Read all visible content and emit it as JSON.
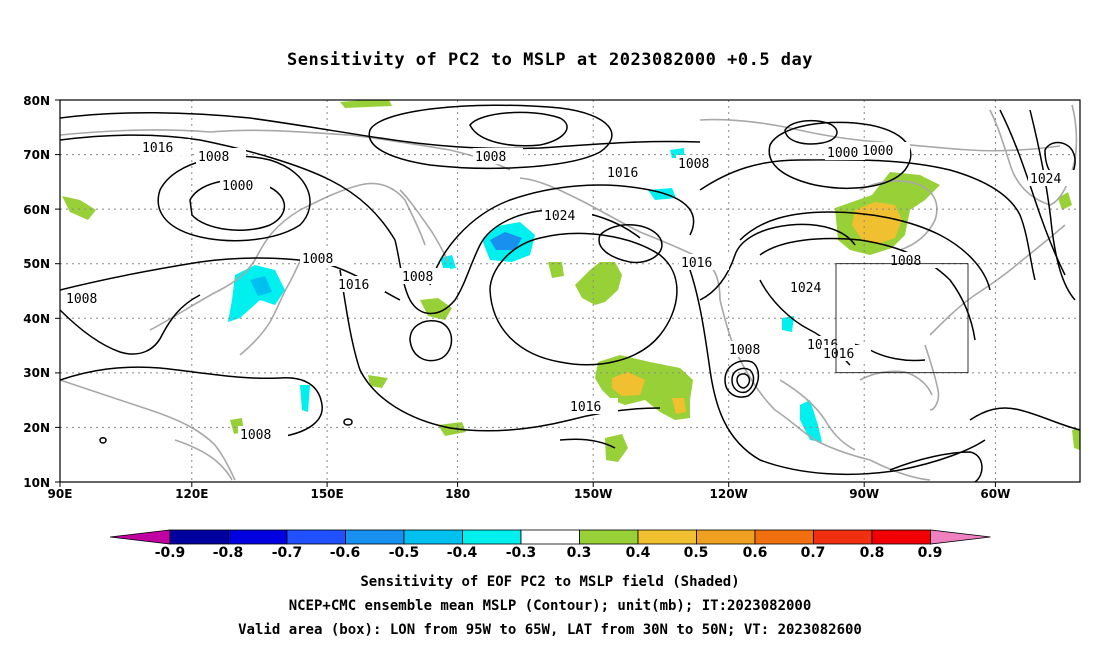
{
  "title": "Sensitivity of PC2 to MSLP at 2023082000 +0.5 day",
  "map": {
    "lat_labels": [
      "80N",
      "70N",
      "60N",
      "50N",
      "40N",
      "30N",
      "20N",
      "10N"
    ],
    "lon_labels": [
      "90E",
      "120E",
      "150E",
      "180",
      "150W",
      "120W",
      "90W",
      "60W"
    ],
    "projection": "cylindrical",
    "lon_range": [
      "90E",
      "50W"
    ],
    "lat_range": [
      "10N",
      "80N"
    ],
    "grid": "dotted",
    "contour_color": "#000000",
    "coast_color": "#a8a8a8",
    "contour_labels": [
      "1016",
      "1008",
      "1008",
      "1000",
      "1008",
      "1016",
      "1008",
      "1008",
      "1024",
      "1016",
      "1008",
      "1016",
      "1008",
      "1024",
      "1016",
      "1016",
      "1000",
      "1000",
      "1016",
      "1024",
      "1008",
      "1008"
    ],
    "valid_box": {
      "lon": [
        "95W",
        "65W"
      ],
      "lat": [
        "30N",
        "50N"
      ]
    }
  },
  "colorbar": {
    "labels": [
      "-0.9",
      "-0.8",
      "-0.7",
      "-0.6",
      "-0.5",
      "-0.4",
      "-0.3",
      "0.3",
      "0.4",
      "0.5",
      "0.6",
      "0.7",
      "0.8",
      "0.9"
    ],
    "colors": [
      "#c000a0",
      "#0000a0",
      "#0000e0",
      "#2050ff",
      "#1890f0",
      "#00c0f0",
      "#00f0f0",
      "#ffffff",
      "#98d038",
      "#f0c030",
      "#f0a020",
      "#f07010",
      "#f03010",
      "#f00000",
      "#f080c0"
    ]
  },
  "captions": [
    "Sensitivity of EOF PC2 to MSLP field (Shaded)",
    "NCEP+CMC ensemble mean MSLP (Contour); unit(mb); IT:2023082000",
    "Valid area (box): LON from 95W to 65W, LAT from 30N to 50N; VT: 2023082600"
  ]
}
